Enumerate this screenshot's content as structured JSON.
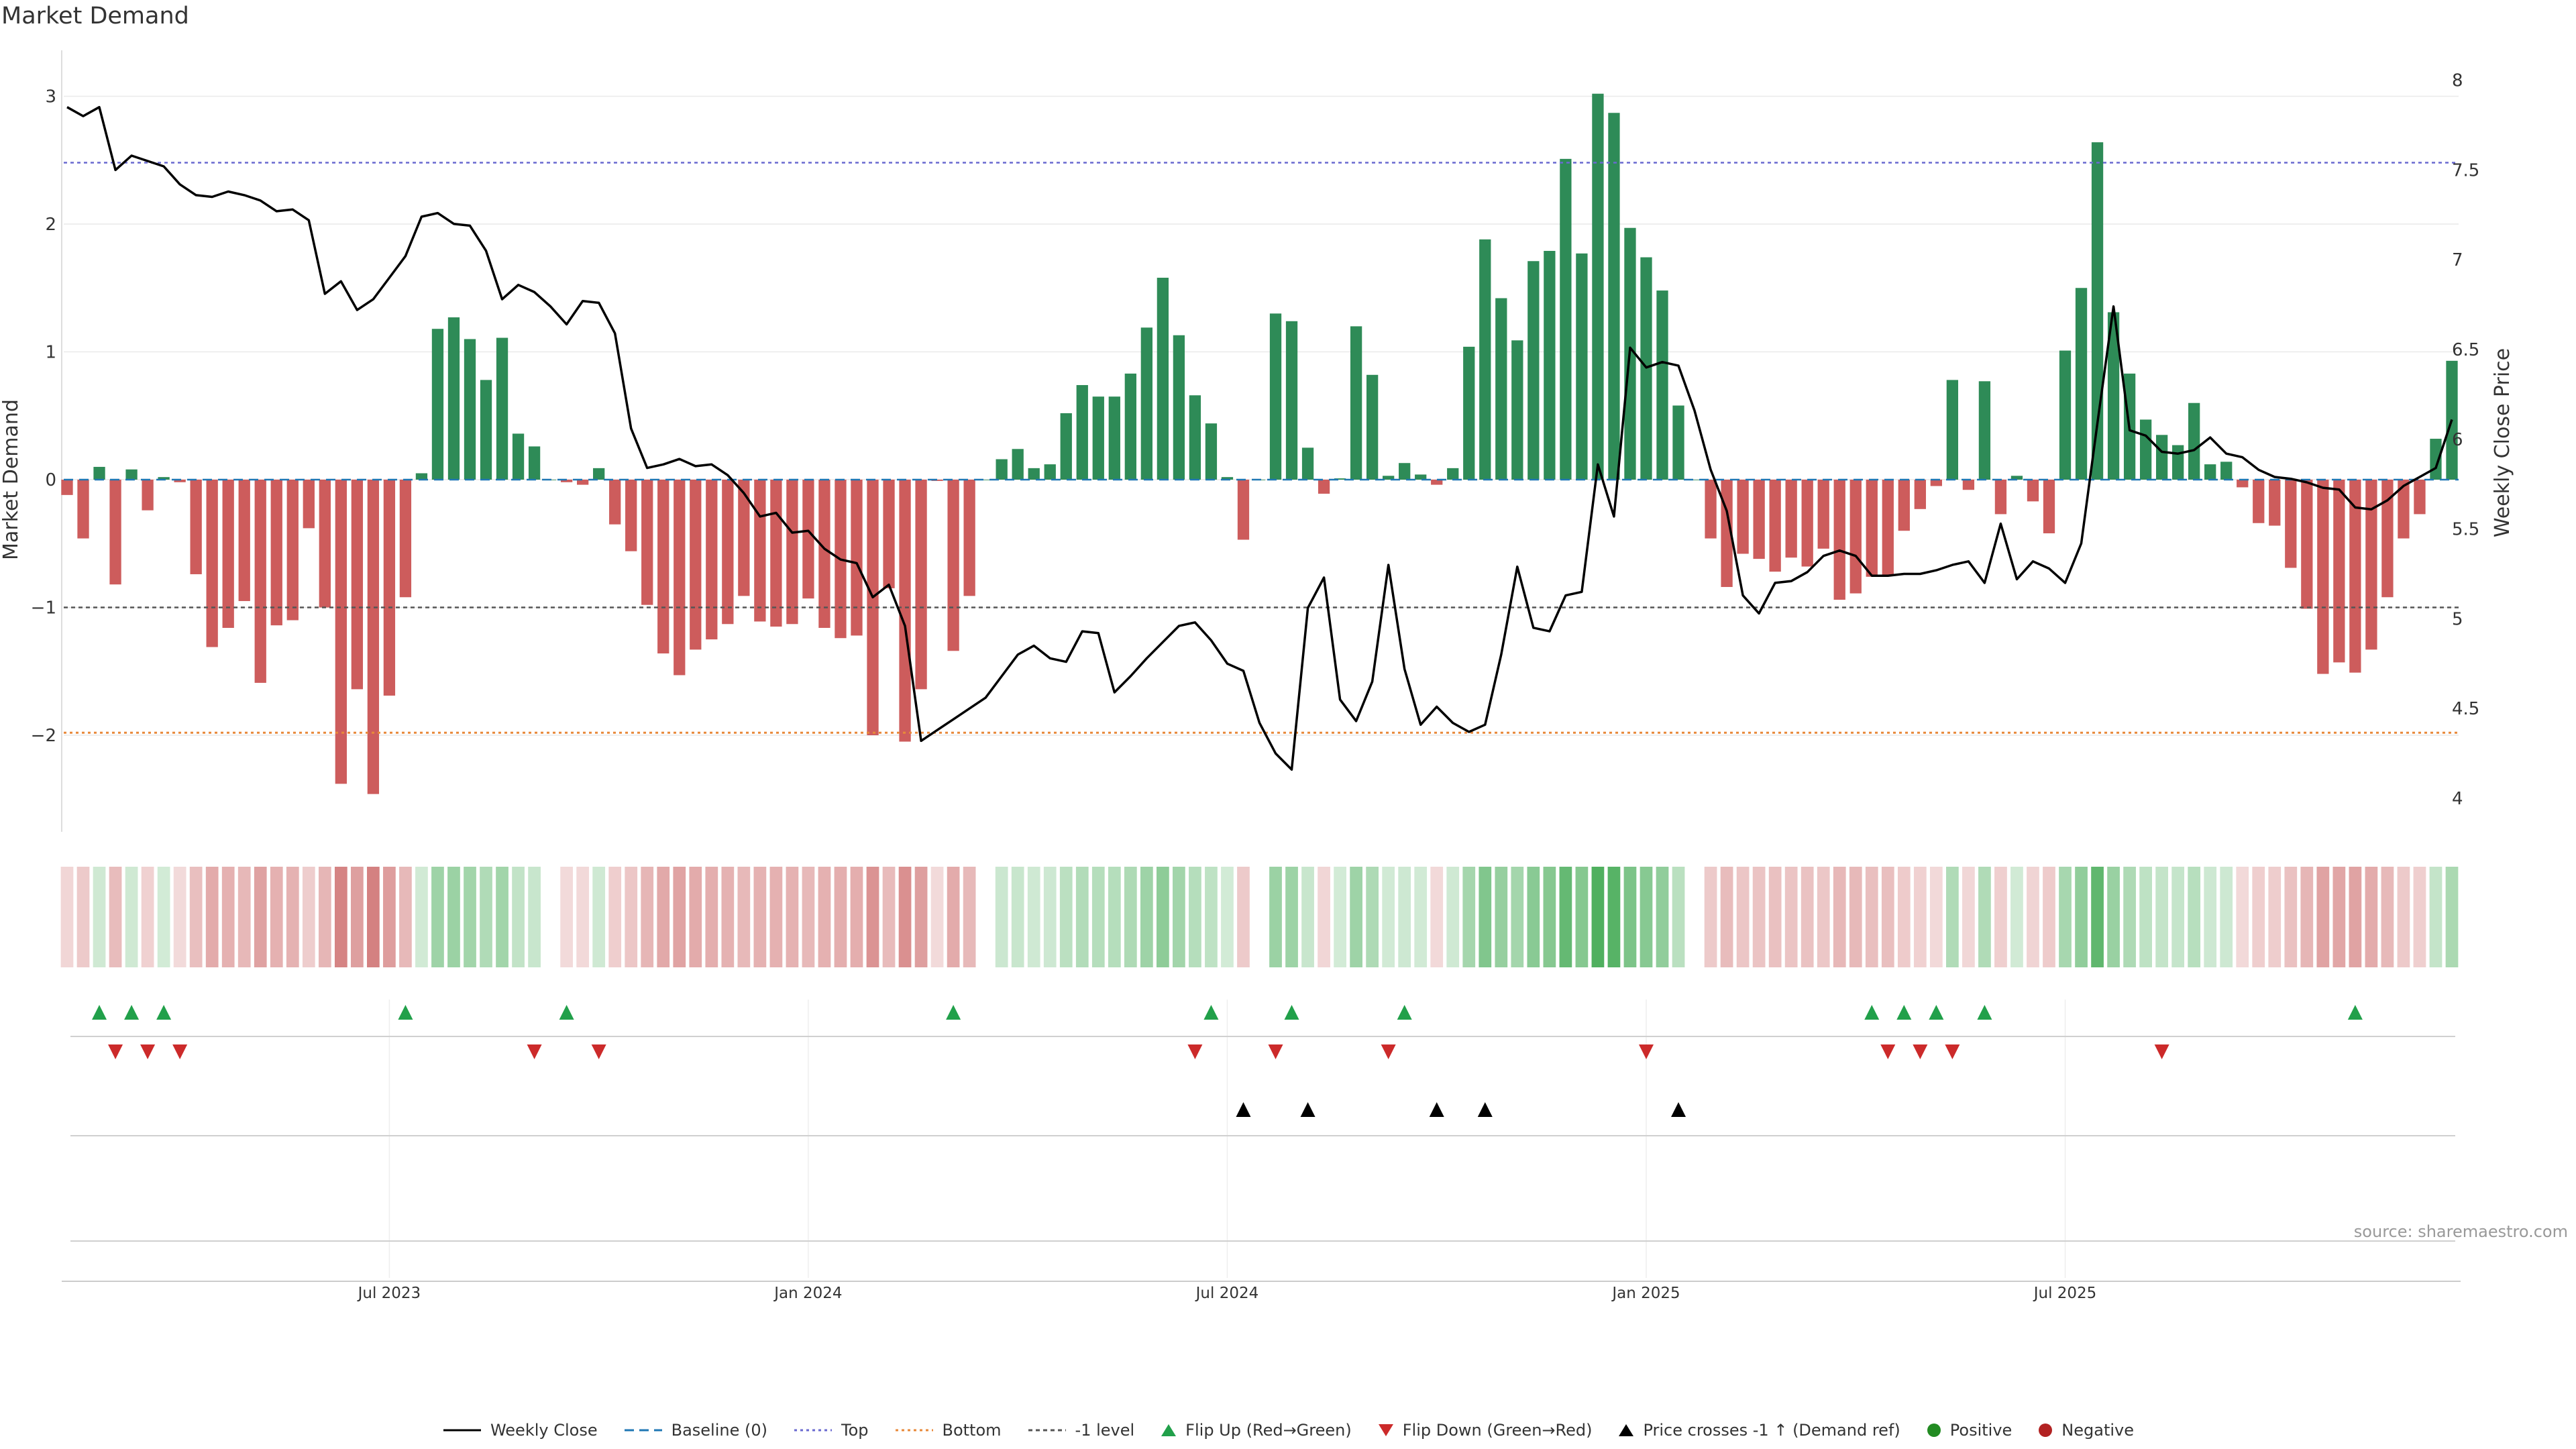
{
  "title": "Market Demand",
  "source": "source: sharemaestro.com",
  "colors": {
    "positive": "#2e8b57",
    "negative": "#cd5c5c",
    "price_line": "#000000",
    "top": "#6a6ad0",
    "bottom": "#e8893a",
    "minus1": "#555555",
    "baseline": "#1f77b4",
    "flip_up": "#21a04a",
    "flip_down": "#cc2a2a",
    "heat_pos": "#4cae5c",
    "heat_neg": "#cd6b6b"
  },
  "chart_data": {
    "type": "bar",
    "title": "Market Demand",
    "ylabel": "Market Demand",
    "y2label": "Weekly Close Price",
    "ylim": [
      -2.75,
      3.3
    ],
    "y2lim": [
      3.85,
      8.15
    ],
    "yticks": [
      3,
      2,
      1,
      0,
      -1,
      -2
    ],
    "yticklabels": [
      "3",
      "2",
      "1",
      "0",
      "−1",
      "−2"
    ],
    "y2ticks": [
      8,
      7.5,
      7,
      6.5,
      6,
      5.5,
      5,
      4.5,
      4
    ],
    "y2ticklabels": [
      "8",
      "7.5",
      "7",
      "6.5",
      "6",
      "5.5",
      "5",
      "4.5",
      "4"
    ],
    "reference_lines": {
      "top": 2.48,
      "bottom": -1.98,
      "minus1": -1
    },
    "xticks": [
      {
        "week": 20,
        "label": "Jul 2023"
      },
      {
        "week": 46,
        "label": "Jan 2024"
      },
      {
        "week": 72,
        "label": "Jul 2024"
      },
      {
        "week": 98,
        "label": "Jan 2025"
      },
      {
        "week": 124,
        "label": "Jul 2025"
      }
    ],
    "demand": [
      -0.12,
      -0.46,
      0.1,
      -0.82,
      0.08,
      -0.24,
      0.02,
      -0.02,
      -0.74,
      -1.31,
      -1.16,
      -0.95,
      -1.59,
      -1.14,
      -1.1,
      -0.38,
      -1.0,
      -2.38,
      -1.64,
      -2.46,
      -1.69,
      -0.92,
      0.05,
      1.18,
      1.27,
      1.1,
      0.78,
      1.11,
      0.36,
      0.26,
      0,
      -0.02,
      -0.04,
      0.09,
      -0.35,
      -0.56,
      -0.98,
      -1.36,
      -1.53,
      -1.33,
      -1.25,
      -1.13,
      -0.91,
      -1.11,
      -1.15,
      -1.13,
      -0.93,
      -1.16,
      -1.24,
      -1.22,
      -2.0,
      -0.85,
      -2.05,
      -1.64,
      -0.01,
      -1.34,
      -0.91,
      0,
      0.16,
      0.24,
      0.09,
      0.12,
      0.52,
      0.74,
      0.65,
      0.65,
      0.83,
      1.19,
      1.58,
      1.13,
      0.66,
      0.44,
      0.02,
      -0.47,
      0,
      1.3,
      1.24,
      0.25,
      -0.11,
      0.01,
      1.2,
      0.82,
      0.03,
      0.13,
      0.04,
      -0.04,
      0.09,
      1.04,
      1.88,
      1.42,
      1.09,
      1.71,
      1.79,
      2.51,
      1.77,
      3.02,
      2.87,
      1.97,
      1.74,
      1.48,
      0.58,
      0,
      -0.46,
      -0.84,
      -0.58,
      -0.62,
      -0.72,
      -0.61,
      -0.68,
      -0.54,
      -0.94,
      -0.89,
      -0.76,
      -0.75,
      -0.4,
      -0.23,
      -0.05,
      0.78,
      -0.08,
      0.77,
      -0.27,
      0.03,
      -0.17,
      -0.42,
      1.01,
      1.5,
      2.64,
      1.31,
      0.83,
      0.47,
      0.35,
      0.27,
      0.6,
      0.12,
      0.14,
      -0.06,
      -0.34,
      -0.36,
      -0.69,
      -1.01,
      -1.52,
      -1.43,
      -1.51,
      -1.33,
      -0.92,
      -0.46,
      -0.27,
      0.32,
      0.93
    ],
    "weekly_close": [
      7.85,
      7.8,
      7.85,
      7.5,
      7.58,
      7.55,
      7.52,
      7.42,
      7.36,
      7.35,
      7.38,
      7.36,
      7.33,
      7.27,
      7.28,
      7.22,
      6.81,
      6.88,
      6.72,
      6.78,
      6.9,
      7.02,
      7.24,
      7.26,
      7.2,
      7.19,
      7.05,
      6.78,
      6.86,
      6.82,
      6.74,
      6.64,
      6.77,
      6.76,
      6.59,
      6.06,
      5.84,
      5.86,
      5.89,
      5.85,
      5.86,
      5.8,
      5.7,
      5.57,
      5.59,
      5.48,
      5.49,
      5.39,
      5.33,
      5.31,
      5.12,
      5.19,
      4.96,
      4.32,
      4.38,
      4.44,
      4.5,
      4.56,
      4.68,
      4.8,
      4.85,
      4.78,
      4.76,
      4.93,
      4.92,
      4.59,
      4.68,
      4.78,
      4.87,
      4.96,
      4.98,
      4.88,
      4.75,
      4.71,
      4.42,
      4.25,
      4.16,
      5.06,
      5.23,
      4.55,
      4.43,
      4.65,
      5.3,
      4.72,
      4.41,
      4.51,
      4.42,
      4.37,
      4.41,
      4.8,
      5.29,
      4.95,
      4.93,
      5.13,
      5.15,
      5.86,
      5.57,
      6.51,
      6.4,
      6.43,
      6.41,
      6.16,
      5.83,
      5.6,
      5.13,
      5.03,
      5.2,
      5.21,
      5.26,
      5.35,
      5.38,
      5.35,
      5.24,
      5.24,
      5.25,
      5.25,
      5.27,
      5.3,
      5.32,
      5.2,
      5.53,
      5.22,
      5.32,
      5.28,
      5.2,
      5.42,
      6.09,
      6.74,
      6.05,
      6.02,
      5.93,
      5.92,
      5.94,
      6.01,
      5.92,
      5.9,
      5.83,
      5.79,
      5.78,
      5.76,
      5.73,
      5.72,
      5.62,
      5.61,
      5.66,
      5.74,
      5.79,
      5.84,
      6.11
    ],
    "flip_up_weeks": [
      2,
      4,
      6,
      21,
      31,
      55,
      71,
      76,
      83,
      112,
      114,
      116,
      119,
      142
    ],
    "flip_down_weeks": [
      3,
      5,
      7,
      29,
      33,
      70,
      75,
      82,
      98,
      113,
      115,
      117,
      130
    ],
    "price_cross_weeks": [
      73,
      77,
      85,
      88,
      100
    ],
    "legend": [
      "Weekly Close",
      "Baseline (0)",
      "Top",
      "Bottom",
      "-1 level",
      "Flip Up (Red→Green)",
      "Flip Down (Green→Red)",
      "Price crosses -1 ↑ (Demand ref)",
      "Positive",
      "Negative"
    ]
  }
}
